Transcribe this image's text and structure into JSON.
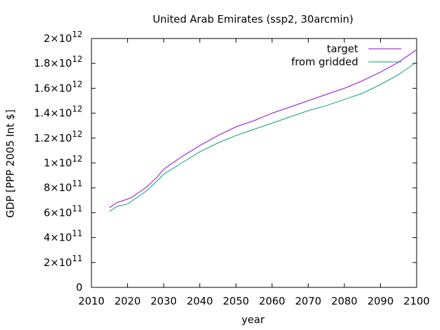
{
  "chart_data": {
    "type": "line",
    "title": "United Arab Emirates (ssp2, 30arcmin)",
    "xlabel": "year",
    "ylabel": "GDP [PPP 2005 Int $]",
    "xlim": [
      2010,
      2100
    ],
    "ylim": [
      0,
      2000000000000
    ],
    "x_ticks": [
      "2010",
      "2020",
      "2030",
      "2040",
      "2050",
      "2060",
      "2070",
      "2080",
      "2090",
      "2100"
    ],
    "y_ticks": [
      {
        "mantissa": "0",
        "exponent": ""
      },
      {
        "mantissa": "2×10",
        "exponent": "11"
      },
      {
        "mantissa": "4×10",
        "exponent": "11"
      },
      {
        "mantissa": "6×10",
        "exponent": "11"
      },
      {
        "mantissa": "8×10",
        "exponent": "11"
      },
      {
        "mantissa": "1×10",
        "exponent": "12"
      },
      {
        "mantissa": "1.2×10",
        "exponent": "12"
      },
      {
        "mantissa": "1.4×10",
        "exponent": "12"
      },
      {
        "mantissa": "1.6×10",
        "exponent": "12"
      },
      {
        "mantissa": "1.8×10",
        "exponent": "12"
      },
      {
        "mantissa": "2×10",
        "exponent": "12"
      }
    ],
    "y_tick_values": [
      0,
      200000000000,
      400000000000,
      600000000000,
      800000000000,
      1000000000000,
      1200000000000,
      1400000000000,
      1600000000000,
      1800000000000,
      2000000000000
    ],
    "legend_position": "top-right",
    "grid": false,
    "x": [
      2015,
      2017,
      2020,
      2021,
      2023,
      2025,
      2028,
      2030,
      2035,
      2040,
      2045,
      2050,
      2055,
      2060,
      2065,
      2070,
      2075,
      2080,
      2085,
      2090,
      2095,
      2100
    ],
    "series": [
      {
        "name": "target",
        "color": "#9400d3",
        "values": [
          640000000000,
          680000000000,
          710000000000,
          720000000000,
          760000000000,
          800000000000,
          880000000000,
          950000000000,
          1050000000000,
          1140000000000,
          1220000000000,
          1290000000000,
          1340000000000,
          1400000000000,
          1450000000000,
          1500000000000,
          1550000000000,
          1600000000000,
          1660000000000,
          1730000000000,
          1810000000000,
          1910000000000
        ]
      },
      {
        "name": "from gridded",
        "color": "#009e73",
        "values": [
          610000000000,
          650000000000,
          670000000000,
          690000000000,
          730000000000,
          770000000000,
          850000000000,
          910000000000,
          1000000000000,
          1090000000000,
          1160000000000,
          1220000000000,
          1270000000000,
          1320000000000,
          1370000000000,
          1420000000000,
          1460000000000,
          1510000000000,
          1560000000000,
          1630000000000,
          1710000000000,
          1810000000000
        ]
      }
    ]
  }
}
